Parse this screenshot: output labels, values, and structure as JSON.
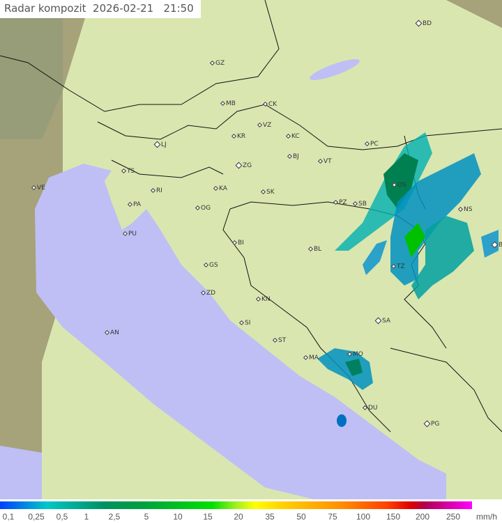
{
  "title": "Radar kompozit  2026-02-21   21:50",
  "colors": {
    "sea": "#bfbff5",
    "land": "#d9e6b0",
    "outside": "#a6a27a",
    "border": "#111111"
  },
  "cities": [
    {
      "code": "GZ"
    },
    {
      "code": "BD",
      "major": true
    },
    {
      "code": "MB"
    },
    {
      "code": "CK"
    },
    {
      "code": "VZ"
    },
    {
      "code": "KR"
    },
    {
      "code": "KC"
    },
    {
      "code": "LJ",
      "major": true
    },
    {
      "code": "PC"
    },
    {
      "code": "BJ"
    },
    {
      "code": "ZG",
      "major": true
    },
    {
      "code": "VT"
    },
    {
      "code": "TS"
    },
    {
      "code": "VE"
    },
    {
      "code": "RI"
    },
    {
      "code": "KA"
    },
    {
      "code": "SK"
    },
    {
      "code": "OS"
    },
    {
      "code": "PA"
    },
    {
      "code": "OG"
    },
    {
      "code": "PZ"
    },
    {
      "code": "SB"
    },
    {
      "code": "NS"
    },
    {
      "code": "PU"
    },
    {
      "code": "BI"
    },
    {
      "code": "BL"
    },
    {
      "code": "BG",
      "major": true
    },
    {
      "code": "GS"
    },
    {
      "code": "TZ"
    },
    {
      "code": "ZD"
    },
    {
      "code": "KN"
    },
    {
      "code": "SA",
      "major": true
    },
    {
      "code": "SI"
    },
    {
      "code": "AN"
    },
    {
      "code": "ST"
    },
    {
      "code": "MA"
    },
    {
      "code": "MO"
    },
    {
      "code": "DU"
    },
    {
      "code": "PG",
      "major": true
    }
  ],
  "legend": {
    "ticks": [
      "0,1",
      "0,25",
      "0,5",
      "1",
      "2,5",
      "5",
      "10",
      "15",
      "20",
      "35",
      "50",
      "75",
      "100",
      "150",
      "200",
      "250"
    ],
    "unit": "mm/h"
  }
}
